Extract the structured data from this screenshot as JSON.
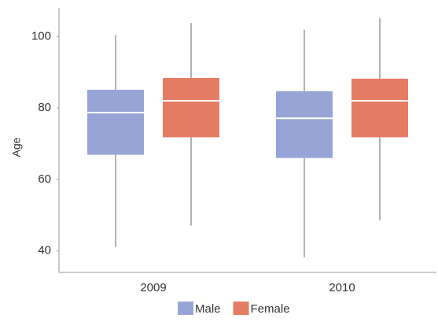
{
  "chart_data": {
    "type": "box",
    "y_label": "Age",
    "categories": [
      "2009",
      "2010"
    ],
    "series": [
      {
        "name": "Male",
        "color": "#97a5d6",
        "boxes": [
          {
            "min": 41.1,
            "q1": 66.9,
            "median": 78.7,
            "q3": 85.1,
            "max": 100.4
          },
          {
            "min": 38.2,
            "q1": 66,
            "median": 77.1,
            "q3": 84.7,
            "max": 101.9
          }
        ]
      },
      {
        "name": "Female",
        "color": "#e57c63",
        "boxes": [
          {
            "min": 47.1,
            "q1": 71.8,
            "median": 82,
            "q3": 88.4,
            "max": 103.8
          },
          {
            "min": 48.6,
            "q1": 71.8,
            "median": 82,
            "q3": 88.2,
            "max": 105.2
          }
        ]
      }
    ],
    "ylim": [
      34,
      108
    ],
    "yticks": [
      40,
      60,
      80,
      100
    ],
    "grid": false,
    "legend": "bottom"
  }
}
